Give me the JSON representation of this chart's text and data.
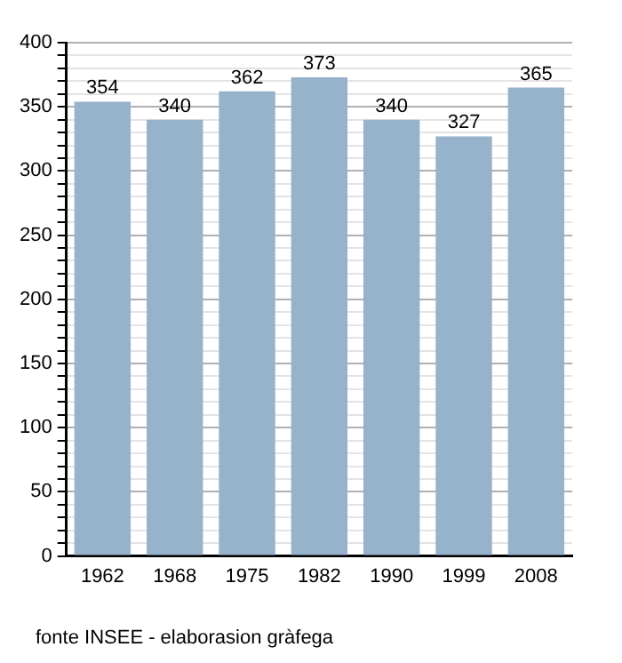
{
  "chart_data": {
    "type": "bar",
    "categories": [
      "1962",
      "1968",
      "1975",
      "1982",
      "1990",
      "1999",
      "2008"
    ],
    "values": [
      354,
      340,
      362,
      373,
      340,
      327,
      365
    ],
    "color": "#97b2cb",
    "data_labels": true,
    "ylim": [
      0,
      400
    ],
    "yticks": [
      0,
      {
        "value": 10,
        "label": null
      },
      {
        "value": 20,
        "label": null
      },
      {
        "value": 30,
        "label": null
      },
      {
        "value": 40,
        "label": null
      },
      50,
      {
        "value": 60,
        "label": null
      },
      {
        "value": 70,
        "label": null
      },
      {
        "value": 80,
        "label": null
      },
      {
        "value": 90,
        "label": null
      },
      100,
      {
        "value": 110,
        "label": null
      },
      {
        "value": 120,
        "label": null
      },
      {
        "value": 130,
        "label": null
      },
      {
        "value": 140,
        "label": null
      },
      150,
      {
        "value": 160,
        "label": null
      },
      {
        "value": 170,
        "label": null
      },
      {
        "value": 180,
        "label": null
      },
      {
        "value": 190,
        "label": null
      },
      200,
      {
        "value": 210,
        "label": null
      },
      {
        "value": 220,
        "label": null
      },
      {
        "value": 230,
        "label": null
      },
      {
        "value": 240,
        "label": null
      },
      250,
      {
        "value": 260,
        "label": null
      },
      {
        "value": 270,
        "label": null
      },
      {
        "value": 280,
        "label": null
      },
      {
        "value": 290,
        "label": null
      },
      300,
      {
        "value": 310,
        "label": null
      },
      {
        "value": 320,
        "label": null
      },
      {
        "value": 330,
        "label": null
      },
      {
        "value": 340,
        "label": null
      },
      350,
      {
        "value": 360,
        "label": null
      },
      {
        "value": 370,
        "label": null
      },
      {
        "value": 380,
        "label": null
      },
      {
        "value": 390,
        "label": null
      },
      400
    ],
    "grid": "y",
    "annotations": [
      "fonte INSEE - elaborasion gràfega"
    ]
  }
}
